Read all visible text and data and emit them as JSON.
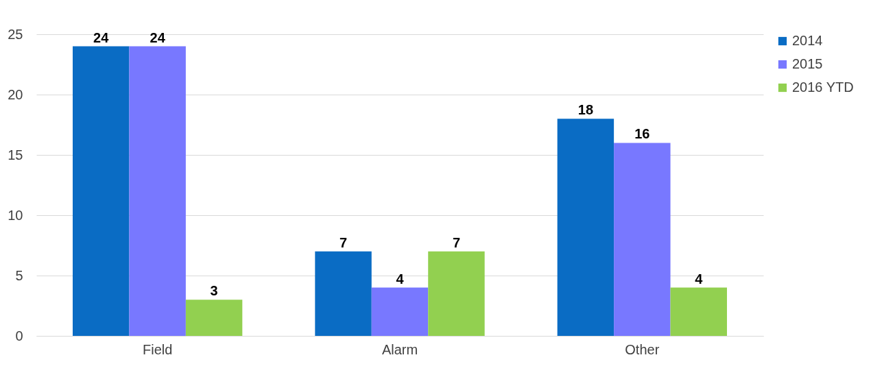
{
  "chart_data": {
    "type": "bar",
    "categories": [
      "Field",
      "Alarm",
      "Other"
    ],
    "series": [
      {
        "name": "2014",
        "color": "#0a6cc4",
        "values": [
          24,
          7,
          18
        ]
      },
      {
        "name": "2015",
        "color": "#7878ff",
        "values": [
          24,
          4,
          16
        ]
      },
      {
        "name": "2016 YTD",
        "color": "#92d050",
        "values": [
          3,
          7,
          4
        ]
      }
    ],
    "ylim": [
      0,
      25
    ],
    "yticks": [
      0,
      5,
      10,
      15,
      20,
      25
    ],
    "grid": "y",
    "legend": "right",
    "data_labels": true
  }
}
